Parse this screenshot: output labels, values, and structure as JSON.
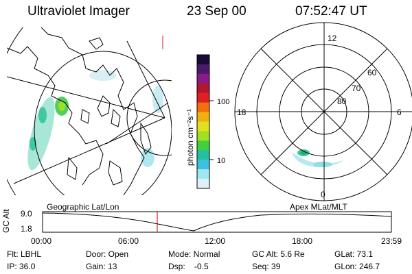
{
  "header": {
    "title": "Ultraviolet Imager",
    "date": "23 Sep 00",
    "time": "07:52:47 UT"
  },
  "colorbar": {
    "ticks": [
      "100",
      "10"
    ],
    "unit": "photon cm⁻²s⁻¹",
    "colors": [
      "#1a0a3a",
      "#4a1a6a",
      "#8a1a8a",
      "#b01830",
      "#e02020",
      "#f07010",
      "#f0b010",
      "#e0e020",
      "#a0e020",
      "#40d040",
      "#20c0a0",
      "#40c0e0",
      "#a0e8f0",
      "#e0f0f8"
    ]
  },
  "polar_plot": {
    "mlt_labels": [
      "12",
      "18",
      "6",
      "0"
    ],
    "lat_labels": [
      "60",
      "70",
      "80"
    ]
  },
  "projection_labels": {
    "geographic": "Geographic Lat/Lon",
    "apex": "Apex MLat/MLT"
  },
  "timeline": {
    "ylabel": "GC Alt",
    "y_ticks": [
      "9.0",
      "1.8"
    ],
    "x_ticks": [
      "00:00",
      "06:00",
      "12:00",
      "18:00",
      "23:59"
    ],
    "current_marker_color": "#d02020"
  },
  "info": {
    "filter": "Flt: LBHL",
    "door": "Door: Open",
    "mode": "Mode: Normal",
    "gc_alt": "GC Alt: 5.6 Re",
    "glat": "GLat: 73.1",
    "ip": "IP: 36.0",
    "gain": "Gain: 13",
    "dsp": "Dsp:    -0.5",
    "seq": "Seq: 39",
    "glon": "GLon: 246.7"
  }
}
